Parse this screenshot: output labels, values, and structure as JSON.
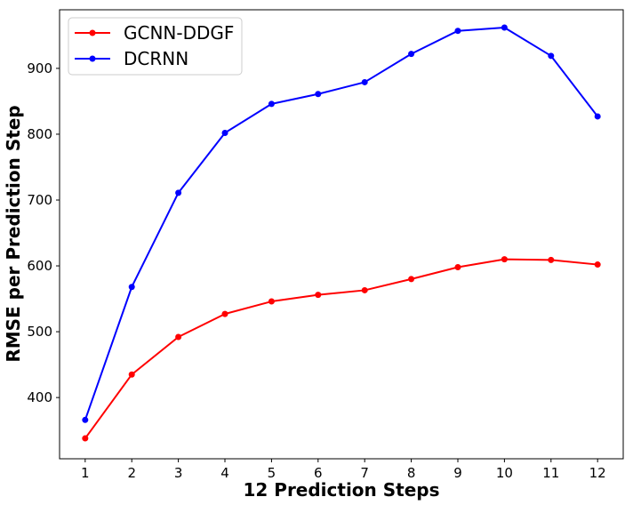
{
  "chart_data": {
    "type": "line",
    "xlabel": "12 Prediction Steps",
    "ylabel": "RMSE per Prediction Step",
    "x": [
      1,
      2,
      3,
      4,
      5,
      6,
      7,
      8,
      9,
      10,
      11,
      12
    ],
    "xticks": [
      "1",
      "2",
      "3",
      "4",
      "5",
      "6",
      "7",
      "8",
      "9",
      "10",
      "11",
      "12"
    ],
    "yticks": [
      "400",
      "500",
      "600",
      "700",
      "800",
      "900"
    ],
    "yticks_values": [
      400,
      500,
      600,
      700,
      800,
      900
    ],
    "xlim": [
      0.45,
      12.55
    ],
    "ylim": [
      307,
      989
    ],
    "grid": false,
    "legend_position": "top-left",
    "series": [
      {
        "name": "GCNN-DDGF",
        "color": "#ff0000",
        "values": [
          338,
          435,
          492,
          527,
          546,
          556,
          563,
          580,
          598,
          610,
          609,
          602
        ]
      },
      {
        "name": "DCRNN",
        "color": "#0000ff",
        "values": [
          366,
          568,
          711,
          802,
          846,
          861,
          879,
          922,
          957,
          962,
          919,
          827
        ]
      }
    ]
  }
}
